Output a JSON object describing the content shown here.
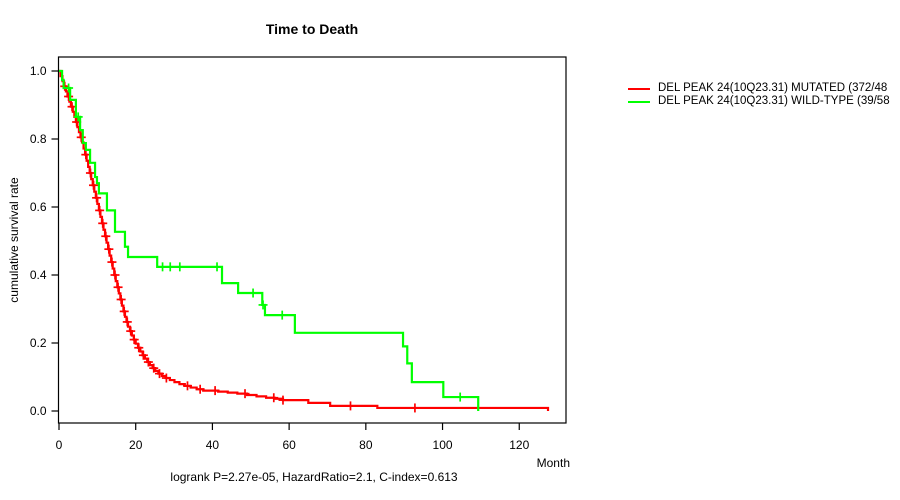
{
  "title": "Time to Death",
  "axes": {
    "x_label": "Month",
    "y_label": "cumulative survival rate",
    "x_ticks": [
      0,
      20,
      40,
      60,
      80,
      100,
      120
    ],
    "y_ticks": [
      "0.0",
      "0.2",
      "0.4",
      "0.6",
      "0.8",
      "1.0"
    ]
  },
  "caption": "logrank P=2.27e-05, HazardRatio=2.1, C-index=0.613",
  "legend": [
    {
      "label": "DEL PEAK 24(10Q23.31) MUTATED (372/48",
      "color": "#ff0000"
    },
    {
      "label": "DEL PEAK 24(10Q23.31) WILD-TYPE (39/58",
      "color": "#00ff00"
    }
  ],
  "chart_data": {
    "type": "line",
    "subtype": "kaplan-meier-step",
    "title": "Time to Death",
    "xlabel": "Month",
    "ylabel": "cumulative survival rate",
    "xlim": [
      0,
      132
    ],
    "ylim": [
      0,
      1
    ],
    "grid": false,
    "legend_position": "top-right-outside",
    "stats": {
      "logrank_p": "2.27e-05",
      "hazard_ratio": "2.1",
      "c_index": "0.613"
    },
    "series": [
      {
        "name": "DEL PEAK 24(10Q23.31) MUTATED (372/48",
        "color": "#ff0000",
        "steps": [
          [
            0,
            1.0
          ],
          [
            0.4,
            0.985
          ],
          [
            0.9,
            0.97
          ],
          [
            1.3,
            0.955
          ],
          [
            1.8,
            0.94
          ],
          [
            2.2,
            0.925
          ],
          [
            2.7,
            0.91
          ],
          [
            3.1,
            0.895
          ],
          [
            3.6,
            0.88
          ],
          [
            4.0,
            0.865
          ],
          [
            4.4,
            0.85
          ],
          [
            4.8,
            0.835
          ],
          [
            5.2,
            0.82
          ],
          [
            5.6,
            0.805
          ],
          [
            6.0,
            0.79
          ],
          [
            6.4,
            0.772
          ],
          [
            6.8,
            0.754
          ],
          [
            7.2,
            0.736
          ],
          [
            7.6,
            0.718
          ],
          [
            8.0,
            0.7
          ],
          [
            8.4,
            0.682
          ],
          [
            8.8,
            0.664
          ],
          [
            9.2,
            0.645
          ],
          [
            9.6,
            0.627
          ],
          [
            10.0,
            0.609
          ],
          [
            10.4,
            0.59
          ],
          [
            10.8,
            0.571
          ],
          [
            11.2,
            0.552
          ],
          [
            11.6,
            0.533
          ],
          [
            12.0,
            0.514
          ],
          [
            12.4,
            0.495
          ],
          [
            12.8,
            0.476
          ],
          [
            13.2,
            0.457
          ],
          [
            13.6,
            0.438
          ],
          [
            14.0,
            0.419
          ],
          [
            14.4,
            0.4
          ],
          [
            14.8,
            0.382
          ],
          [
            15.2,
            0.364
          ],
          [
            15.6,
            0.346
          ],
          [
            16.0,
            0.328
          ],
          [
            16.4,
            0.31
          ],
          [
            16.8,
            0.293
          ],
          [
            17.2,
            0.277
          ],
          [
            17.6,
            0.262
          ],
          [
            18.0,
            0.248
          ],
          [
            18.5,
            0.235
          ],
          [
            19.0,
            0.222
          ],
          [
            19.5,
            0.21
          ],
          [
            20.0,
            0.198
          ],
          [
            20.6,
            0.186
          ],
          [
            21.2,
            0.175
          ],
          [
            21.8,
            0.164
          ],
          [
            22.4,
            0.154
          ],
          [
            23.0,
            0.144
          ],
          [
            23.7,
            0.135
          ],
          [
            24.4,
            0.126
          ],
          [
            25.1,
            0.118
          ],
          [
            25.9,
            0.11
          ],
          [
            26.8,
            0.103
          ],
          [
            27.8,
            0.097
          ],
          [
            28.9,
            0.091
          ],
          [
            30.1,
            0.085
          ],
          [
            31.4,
            0.079
          ],
          [
            32.8,
            0.074
          ],
          [
            34.3,
            0.069
          ],
          [
            35.9,
            0.064
          ],
          [
            37.6,
            0.06
          ],
          [
            41.5,
            0.057
          ],
          [
            44.0,
            0.054
          ],
          [
            46.5,
            0.051
          ],
          [
            49.0,
            0.047
          ],
          [
            51.5,
            0.043
          ],
          [
            54.0,
            0.039
          ],
          [
            56.2,
            0.036
          ],
          [
            58.4,
            0.032
          ],
          [
            65.0,
            0.024
          ],
          [
            70.7,
            0.015
          ],
          [
            83.0,
            0.009
          ],
          [
            127.5,
            0.0
          ]
        ],
        "censor_months": [
          1.5,
          2.5,
          3.4,
          4.6,
          5.8,
          7.0,
          8.2,
          9.0,
          9.8,
          10.6,
          11.4,
          12.2,
          13.0,
          13.8,
          14.6,
          15.4,
          16.2,
          17.0,
          17.8,
          18.7,
          19.6,
          20.8,
          22.0,
          23.3,
          24.7,
          26.2,
          28.0,
          33.5,
          36.8,
          40.7,
          48.5,
          56.0,
          58.4,
          76.0,
          92.8
        ]
      },
      {
        "name": "DEL PEAK 24(10Q23.31) WILD-TYPE (39/58",
        "color": "#00ff00",
        "steps": [
          [
            0,
            1.0
          ],
          [
            0.8,
            0.974
          ],
          [
            1.2,
            0.95
          ],
          [
            2.9,
            0.915
          ],
          [
            4.4,
            0.865
          ],
          [
            5.5,
            0.826
          ],
          [
            6.2,
            0.788
          ],
          [
            7.0,
            0.768
          ],
          [
            8.1,
            0.73
          ],
          [
            9.4,
            0.688
          ],
          [
            9.9,
            0.67
          ],
          [
            10.4,
            0.64
          ],
          [
            12.5,
            0.59
          ],
          [
            14.6,
            0.527
          ],
          [
            17.2,
            0.483
          ],
          [
            18.0,
            0.453
          ],
          [
            25.6,
            0.424
          ],
          [
            42.5,
            0.376
          ],
          [
            46.7,
            0.347
          ],
          [
            53.0,
            0.312
          ],
          [
            53.7,
            0.282
          ],
          [
            61.5,
            0.23
          ],
          [
            89.7,
            0.19
          ],
          [
            90.8,
            0.14
          ],
          [
            92.0,
            0.085
          ],
          [
            100.2,
            0.041
          ],
          [
            109.3,
            0.0
          ]
        ],
        "censor_months": [
          2.5,
          5.0,
          27.0,
          29.0,
          31.5,
          41.2,
          50.6,
          53.2,
          58.2,
          104.6
        ]
      }
    ]
  }
}
